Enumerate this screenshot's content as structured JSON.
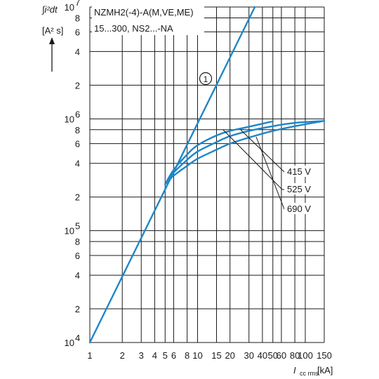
{
  "chart_data": {
    "type": "line",
    "x_scale": "log",
    "y_scale": "log",
    "xlim": [
      1,
      150
    ],
    "ylim": [
      10000,
      10000000
    ],
    "grid": true,
    "y_label_line1": "∫i²dt",
    "y_label_line2": "[A² s]",
    "x_label_symbol": "I",
    "x_label_subscript": "cc rms",
    "x_label_unit": "[kA]",
    "x_ticks": [
      {
        "value": 1,
        "label": "1"
      },
      {
        "value": 2,
        "label": "2"
      },
      {
        "value": 3,
        "label": "3"
      },
      {
        "value": 4,
        "label": "4"
      },
      {
        "value": 5,
        "label": "5"
      },
      {
        "value": 6,
        "label": "6"
      },
      {
        "value": 8,
        "label": "8"
      },
      {
        "value": 10,
        "label": "10"
      },
      {
        "value": 15,
        "label": "15"
      },
      {
        "value": 20,
        "label": "20"
      },
      {
        "value": 30,
        "label": "30"
      },
      {
        "value": 40,
        "label": "40"
      },
      {
        "value": 50,
        "label": "50"
      },
      {
        "value": 60,
        "label": "60"
      },
      {
        "value": 80,
        "label": "80"
      },
      {
        "value": 100,
        "label": "100"
      },
      {
        "value": 150,
        "label": "150"
      }
    ],
    "y_ticks": [
      {
        "value": 10000,
        "base": "10",
        "exp": "4"
      },
      {
        "value": 20000,
        "base": "2",
        "exp": ""
      },
      {
        "value": 40000,
        "base": "4",
        "exp": ""
      },
      {
        "value": 60000,
        "base": "6",
        "exp": ""
      },
      {
        "value": 80000,
        "base": "8",
        "exp": ""
      },
      {
        "value": 100000,
        "base": "10",
        "exp": "5"
      },
      {
        "value": 200000,
        "base": "2",
        "exp": ""
      },
      {
        "value": 400000,
        "base": "4",
        "exp": ""
      },
      {
        "value": 600000,
        "base": "6",
        "exp": ""
      },
      {
        "value": 800000,
        "base": "8",
        "exp": ""
      },
      {
        "value": 1000000,
        "base": "10",
        "exp": "6"
      },
      {
        "value": 2000000,
        "base": "2",
        "exp": ""
      },
      {
        "value": 4000000,
        "base": "4",
        "exp": ""
      },
      {
        "value": 6000000,
        "base": "6",
        "exp": ""
      },
      {
        "value": 8000000,
        "base": "8",
        "exp": ""
      },
      {
        "value": 10000000,
        "base": "10",
        "exp": "7"
      }
    ],
    "annotation_lines": [
      "NZMH2(-4)-A(M,VE,ME)",
      "15...300, NS2...-NA"
    ],
    "series": [
      {
        "name": "①",
        "x": [
          1,
          34
        ],
        "y": [
          10000,
          10000000
        ]
      },
      {
        "name": "415 V",
        "x": [
          5,
          6,
          8,
          10,
          15,
          20,
          30,
          50
        ],
        "y": [
          260000,
          350000,
          480000,
          580000,
          710000,
          780000,
          850000,
          950000
        ]
      },
      {
        "name": "525 V",
        "x": [
          5,
          6,
          8,
          10,
          15,
          20,
          30,
          50,
          80,
          150
        ],
        "y": [
          260000,
          330000,
          430000,
          510000,
          620000,
          700000,
          780000,
          860000,
          920000,
          960000
        ]
      },
      {
        "name": "690 V",
        "x": [
          5,
          6,
          8,
          10,
          15,
          20,
          30,
          50,
          80,
          150
        ],
        "y": [
          260000,
          310000,
          380000,
          440000,
          530000,
          600000,
          680000,
          780000,
          860000,
          960000
        ]
      }
    ],
    "series_label_1": "1",
    "legend_labels": [
      "415 V",
      "525 V",
      "690 V"
    ],
    "colors": {
      "curve": "#1f86c8",
      "grid": "#1a1a1a"
    }
  }
}
